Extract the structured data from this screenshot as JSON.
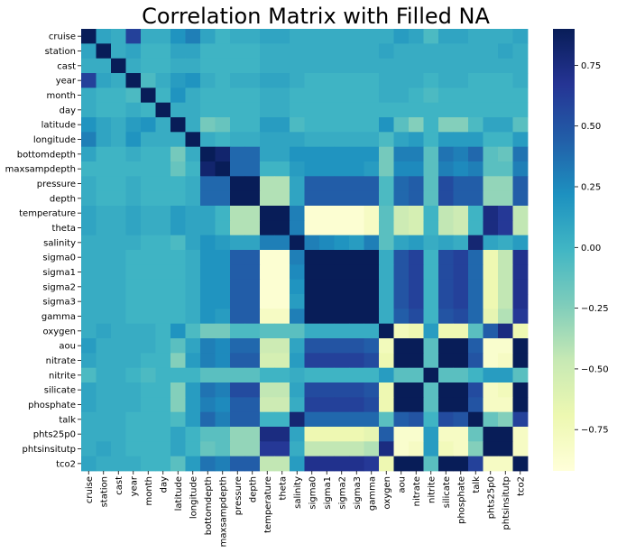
{
  "chart_data": {
    "type": "heatmap",
    "title": "Correlation Matrix with Filled NA",
    "xlabel": "",
    "ylabel": "",
    "labels": [
      "cruise",
      "station",
      "cast",
      "year",
      "month",
      "day",
      "latitude",
      "longitude",
      "bottomdepth",
      "maxsampdepth",
      "pressure",
      "depth",
      "temperature",
      "theta",
      "salinity",
      "sigma0",
      "sigma1",
      "sigma2",
      "sigma3",
      "gamma",
      "oxygen",
      "aou",
      "nitrate",
      "nitrite",
      "silicate",
      "phosphate",
      "talk",
      "phts25p0",
      "phtsinsitutp",
      "tco2"
    ],
    "colormap": "YlGnBu",
    "colorbar": {
      "vmin": -0.92,
      "vmax": 0.9,
      "ticks": [
        -0.75,
        -0.5,
        -0.25,
        0.0,
        0.25,
        0.5,
        0.75
      ],
      "tick_labels": [
        "−0.75",
        "−0.50",
        "−0.25",
        "0.00",
        "0.25",
        "0.50",
        "0.75"
      ]
    },
    "matrix": [
      [
        1.0,
        0.1,
        0.05,
        0.6,
        0.05,
        0.05,
        0.2,
        0.3,
        0.1,
        0.0,
        0.05,
        0.05,
        0.1,
        0.1,
        0.05,
        0.05,
        0.05,
        0.05,
        0.05,
        0.05,
        0.05,
        0.15,
        0.1,
        -0.05,
        0.1,
        0.1,
        0.05,
        0.05,
        0.05,
        0.1
      ],
      [
        0.1,
        1.0,
        0.05,
        0.1,
        0.0,
        0.0,
        0.1,
        0.1,
        0.0,
        0.0,
        0.0,
        0.0,
        0.05,
        0.05,
        0.05,
        0.05,
        0.05,
        0.05,
        0.05,
        0.05,
        0.1,
        0.05,
        0.05,
        0.05,
        0.05,
        0.05,
        0.05,
        0.05,
        0.1,
        0.05
      ],
      [
        0.05,
        0.05,
        1.0,
        0.05,
        0.0,
        0.0,
        0.05,
        0.05,
        0.0,
        0.0,
        0.0,
        0.0,
        0.05,
        0.05,
        0.05,
        0.05,
        0.05,
        0.05,
        0.05,
        0.05,
        0.05,
        0.05,
        0.05,
        0.05,
        0.05,
        0.05,
        0.05,
        0.05,
        0.05,
        0.05
      ],
      [
        0.6,
        0.1,
        0.05,
        1.0,
        -0.05,
        0.05,
        0.15,
        0.2,
        0.05,
        0.0,
        0.05,
        0.05,
        0.1,
        0.1,
        0.05,
        0.0,
        0.0,
        0.0,
        0.0,
        0.0,
        0.05,
        0.05,
        0.05,
        0.0,
        0.05,
        0.05,
        0.0,
        0.0,
        0.0,
        0.05
      ],
      [
        0.05,
        0.0,
        0.0,
        -0.05,
        1.0,
        0.0,
        0.2,
        0.05,
        0.0,
        0.0,
        0.0,
        0.0,
        0.05,
        0.05,
        0.0,
        0.0,
        0.0,
        0.0,
        0.0,
        0.0,
        0.05,
        0.05,
        0.0,
        -0.05,
        0.0,
        0.0,
        0.0,
        0.0,
        0.0,
        0.0
      ],
      [
        0.05,
        0.0,
        0.0,
        0.05,
        0.0,
        1.0,
        0.05,
        0.05,
        0.0,
        0.0,
        0.0,
        0.0,
        0.05,
        0.05,
        0.0,
        0.0,
        0.0,
        0.0,
        0.0,
        0.0,
        0.0,
        0.0,
        0.0,
        0.0,
        0.0,
        0.0,
        0.0,
        0.0,
        0.0,
        0.0
      ],
      [
        0.2,
        0.1,
        0.05,
        0.15,
        0.2,
        0.05,
        1.0,
        0.05,
        -0.2,
        -0.15,
        0.0,
        0.0,
        0.15,
        0.15,
        -0.05,
        0.0,
        0.0,
        0.0,
        0.0,
        0.0,
        0.2,
        -0.1,
        -0.25,
        0.0,
        -0.25,
        -0.25,
        -0.05,
        0.1,
        0.1,
        -0.1
      ],
      [
        0.3,
        0.1,
        0.05,
        0.2,
        0.05,
        0.05,
        0.05,
        1.0,
        0.05,
        0.0,
        0.05,
        0.05,
        0.1,
        0.1,
        0.1,
        0.05,
        0.05,
        0.05,
        0.05,
        0.05,
        -0.05,
        0.1,
        0.15,
        0.0,
        0.15,
        0.15,
        0.15,
        0.0,
        0.0,
        0.15
      ],
      [
        0.1,
        0.0,
        0.0,
        0.05,
        0.0,
        0.0,
        -0.2,
        0.05,
        1.0,
        0.82,
        0.4,
        0.4,
        0.1,
        0.1,
        0.2,
        0.2,
        0.2,
        0.2,
        0.2,
        0.2,
        -0.2,
        0.3,
        0.3,
        -0.1,
        0.35,
        0.3,
        0.4,
        -0.1,
        -0.15,
        0.35
      ],
      [
        0.0,
        0.0,
        0.0,
        0.0,
        0.0,
        0.0,
        -0.15,
        0.0,
        0.82,
        1.0,
        0.4,
        0.4,
        0.0,
        0.0,
        0.15,
        0.2,
        0.2,
        0.2,
        0.2,
        0.15,
        -0.2,
        0.25,
        0.25,
        -0.1,
        0.3,
        0.25,
        0.3,
        -0.1,
        -0.1,
        0.3
      ],
      [
        0.05,
        0.0,
        0.0,
        0.05,
        0.0,
        0.0,
        0.0,
        0.05,
        0.4,
        0.4,
        1.0,
        1.0,
        -0.4,
        -0.4,
        0.1,
        0.45,
        0.45,
        0.45,
        0.45,
        0.45,
        -0.05,
        0.4,
        0.45,
        -0.1,
        0.55,
        0.45,
        0.45,
        -0.3,
        -0.3,
        0.45
      ],
      [
        0.05,
        0.0,
        0.0,
        0.05,
        0.0,
        0.0,
        0.0,
        0.05,
        0.4,
        0.4,
        1.0,
        1.0,
        -0.4,
        -0.4,
        0.1,
        0.45,
        0.45,
        0.45,
        0.45,
        0.45,
        -0.05,
        0.4,
        0.45,
        -0.1,
        0.55,
        0.45,
        0.45,
        -0.3,
        -0.3,
        0.45
      ],
      [
        0.1,
        0.05,
        0.05,
        0.1,
        0.05,
        0.05,
        0.15,
        0.1,
        0.1,
        0.0,
        -0.4,
        -0.4,
        1.0,
        1.0,
        0.3,
        -0.88,
        -0.88,
        -0.88,
        -0.88,
        -0.8,
        -0.1,
        -0.5,
        -0.55,
        0.0,
        -0.45,
        -0.5,
        0.0,
        0.75,
        0.65,
        -0.45
      ],
      [
        0.1,
        0.05,
        0.05,
        0.1,
        0.05,
        0.05,
        0.15,
        0.1,
        0.1,
        0.0,
        -0.4,
        -0.4,
        1.0,
        1.0,
        0.3,
        -0.88,
        -0.88,
        -0.88,
        -0.88,
        -0.8,
        -0.1,
        -0.5,
        -0.55,
        0.0,
        -0.45,
        -0.5,
        0.0,
        0.75,
        0.65,
        -0.45
      ],
      [
        0.05,
        0.05,
        0.05,
        0.05,
        0.0,
        0.0,
        -0.05,
        0.1,
        0.2,
        0.15,
        0.1,
        0.1,
        0.3,
        0.3,
        1.0,
        0.3,
        0.25,
        0.2,
        0.15,
        0.3,
        -0.1,
        0.1,
        0.15,
        0.05,
        0.1,
        0.05,
        0.8,
        0.1,
        0.05,
        0.15
      ],
      [
        0.05,
        0.05,
        0.05,
        0.0,
        0.0,
        0.0,
        0.0,
        0.05,
        0.2,
        0.2,
        0.45,
        0.45,
        -0.88,
        -0.88,
        0.3,
        1.0,
        1.0,
        1.0,
        1.0,
        1.0,
        0.05,
        0.5,
        0.6,
        0.0,
        0.55,
        0.6,
        0.4,
        -0.7,
        -0.45,
        0.7
      ],
      [
        0.05,
        0.05,
        0.05,
        0.0,
        0.0,
        0.0,
        0.0,
        0.05,
        0.2,
        0.2,
        0.45,
        0.45,
        -0.88,
        -0.88,
        0.25,
        1.0,
        1.0,
        1.0,
        1.0,
        1.0,
        0.05,
        0.5,
        0.6,
        0.0,
        0.55,
        0.6,
        0.4,
        -0.7,
        -0.45,
        0.7
      ],
      [
        0.05,
        0.05,
        0.05,
        0.0,
        0.0,
        0.0,
        0.0,
        0.05,
        0.2,
        0.2,
        0.45,
        0.45,
        -0.88,
        -0.88,
        0.2,
        1.0,
        1.0,
        1.0,
        1.0,
        1.0,
        0.05,
        0.5,
        0.6,
        0.0,
        0.55,
        0.6,
        0.4,
        -0.7,
        -0.45,
        0.7
      ],
      [
        0.05,
        0.05,
        0.05,
        0.0,
        0.0,
        0.0,
        0.0,
        0.05,
        0.2,
        0.2,
        0.45,
        0.45,
        -0.88,
        -0.88,
        0.15,
        1.0,
        1.0,
        1.0,
        1.0,
        1.0,
        0.05,
        0.5,
        0.6,
        0.0,
        0.55,
        0.6,
        0.4,
        -0.7,
        -0.45,
        0.7
      ],
      [
        0.05,
        0.05,
        0.05,
        0.0,
        0.0,
        0.0,
        0.0,
        0.05,
        0.2,
        0.15,
        0.45,
        0.45,
        -0.8,
        -0.8,
        0.3,
        1.0,
        1.0,
        1.0,
        1.0,
        1.0,
        0.05,
        0.45,
        0.55,
        0.0,
        0.5,
        0.55,
        0.4,
        -0.65,
        -0.4,
        0.65
      ],
      [
        0.05,
        0.1,
        0.05,
        0.05,
        0.05,
        0.0,
        0.2,
        -0.05,
        -0.2,
        -0.2,
        -0.05,
        -0.05,
        -0.1,
        -0.1,
        -0.1,
        0.05,
        0.05,
        0.05,
        0.05,
        0.05,
        1.0,
        -0.75,
        -0.7,
        0.15,
        -0.7,
        -0.7,
        -0.1,
        0.45,
        0.75,
        -0.7
      ],
      [
        0.15,
        0.05,
        0.05,
        0.05,
        0.05,
        0.0,
        -0.1,
        0.1,
        0.3,
        0.25,
        0.4,
        0.4,
        -0.5,
        -0.5,
        0.1,
        0.5,
        0.5,
        0.5,
        0.5,
        0.45,
        -0.75,
        1.0,
        0.95,
        -0.1,
        0.95,
        0.95,
        0.45,
        -0.85,
        -0.85,
        0.95
      ],
      [
        0.1,
        0.05,
        0.05,
        0.05,
        0.0,
        0.0,
        -0.25,
        0.15,
        0.3,
        0.25,
        0.45,
        0.45,
        -0.55,
        -0.55,
        0.15,
        0.6,
        0.6,
        0.6,
        0.6,
        0.55,
        -0.7,
        0.95,
        1.0,
        -0.1,
        0.95,
        0.95,
        0.5,
        -0.85,
        -0.8,
        0.95
      ],
      [
        -0.05,
        0.05,
        0.05,
        0.0,
        -0.05,
        0.0,
        0.0,
        0.0,
        -0.1,
        -0.1,
        -0.1,
        -0.1,
        0.0,
        0.0,
        0.05,
        0.0,
        0.0,
        0.0,
        0.0,
        0.0,
        0.15,
        -0.1,
        -0.1,
        1.0,
        -0.1,
        -0.1,
        0.0,
        0.15,
        0.15,
        -0.1
      ],
      [
        0.1,
        0.05,
        0.05,
        0.05,
        0.0,
        0.0,
        -0.25,
        0.15,
        0.35,
        0.3,
        0.55,
        0.55,
        -0.45,
        -0.45,
        0.1,
        0.55,
        0.55,
        0.55,
        0.55,
        0.5,
        -0.7,
        0.95,
        0.95,
        -0.1,
        1.0,
        0.95,
        0.55,
        -0.8,
        -0.75,
        0.95
      ],
      [
        0.1,
        0.05,
        0.05,
        0.05,
        0.0,
        0.0,
        -0.25,
        0.15,
        0.3,
        0.25,
        0.45,
        0.45,
        -0.5,
        -0.5,
        0.05,
        0.6,
        0.6,
        0.6,
        0.6,
        0.55,
        -0.7,
        0.95,
        0.95,
        -0.1,
        0.95,
        1.0,
        0.5,
        -0.8,
        -0.8,
        0.95
      ],
      [
        0.05,
        0.05,
        0.05,
        0.0,
        0.0,
        0.0,
        -0.05,
        0.15,
        0.4,
        0.3,
        0.45,
        0.45,
        0.0,
        0.0,
        0.8,
        0.4,
        0.4,
        0.4,
        0.4,
        0.4,
        -0.1,
        0.45,
        0.5,
        0.0,
        0.55,
        0.5,
        1.0,
        -0.15,
        -0.25,
        0.6
      ],
      [
        0.05,
        0.05,
        0.05,
        0.0,
        0.0,
        0.0,
        0.1,
        0.0,
        -0.1,
        -0.1,
        -0.3,
        -0.3,
        0.75,
        0.75,
        0.1,
        -0.7,
        -0.7,
        -0.7,
        -0.7,
        -0.65,
        0.45,
        -0.85,
        -0.85,
        0.15,
        -0.8,
        -0.8,
        -0.15,
        1.0,
        0.9,
        -0.8
      ],
      [
        0.05,
        0.1,
        0.05,
        0.0,
        0.0,
        0.0,
        0.1,
        0.0,
        -0.15,
        -0.1,
        -0.3,
        -0.3,
        0.65,
        0.65,
        0.05,
        -0.45,
        -0.45,
        -0.45,
        -0.45,
        -0.4,
        0.75,
        -0.85,
        -0.8,
        0.15,
        -0.75,
        -0.8,
        -0.25,
        0.9,
        1.0,
        -0.8
      ],
      [
        0.1,
        0.05,
        0.05,
        0.05,
        0.0,
        0.0,
        -0.1,
        0.15,
        0.35,
        0.3,
        0.45,
        0.45,
        -0.45,
        -0.45,
        0.15,
        0.7,
        0.7,
        0.7,
        0.7,
        0.65,
        -0.7,
        0.95,
        0.95,
        -0.1,
        0.95,
        0.95,
        0.6,
        -0.8,
        -0.8,
        1.0
      ]
    ]
  }
}
